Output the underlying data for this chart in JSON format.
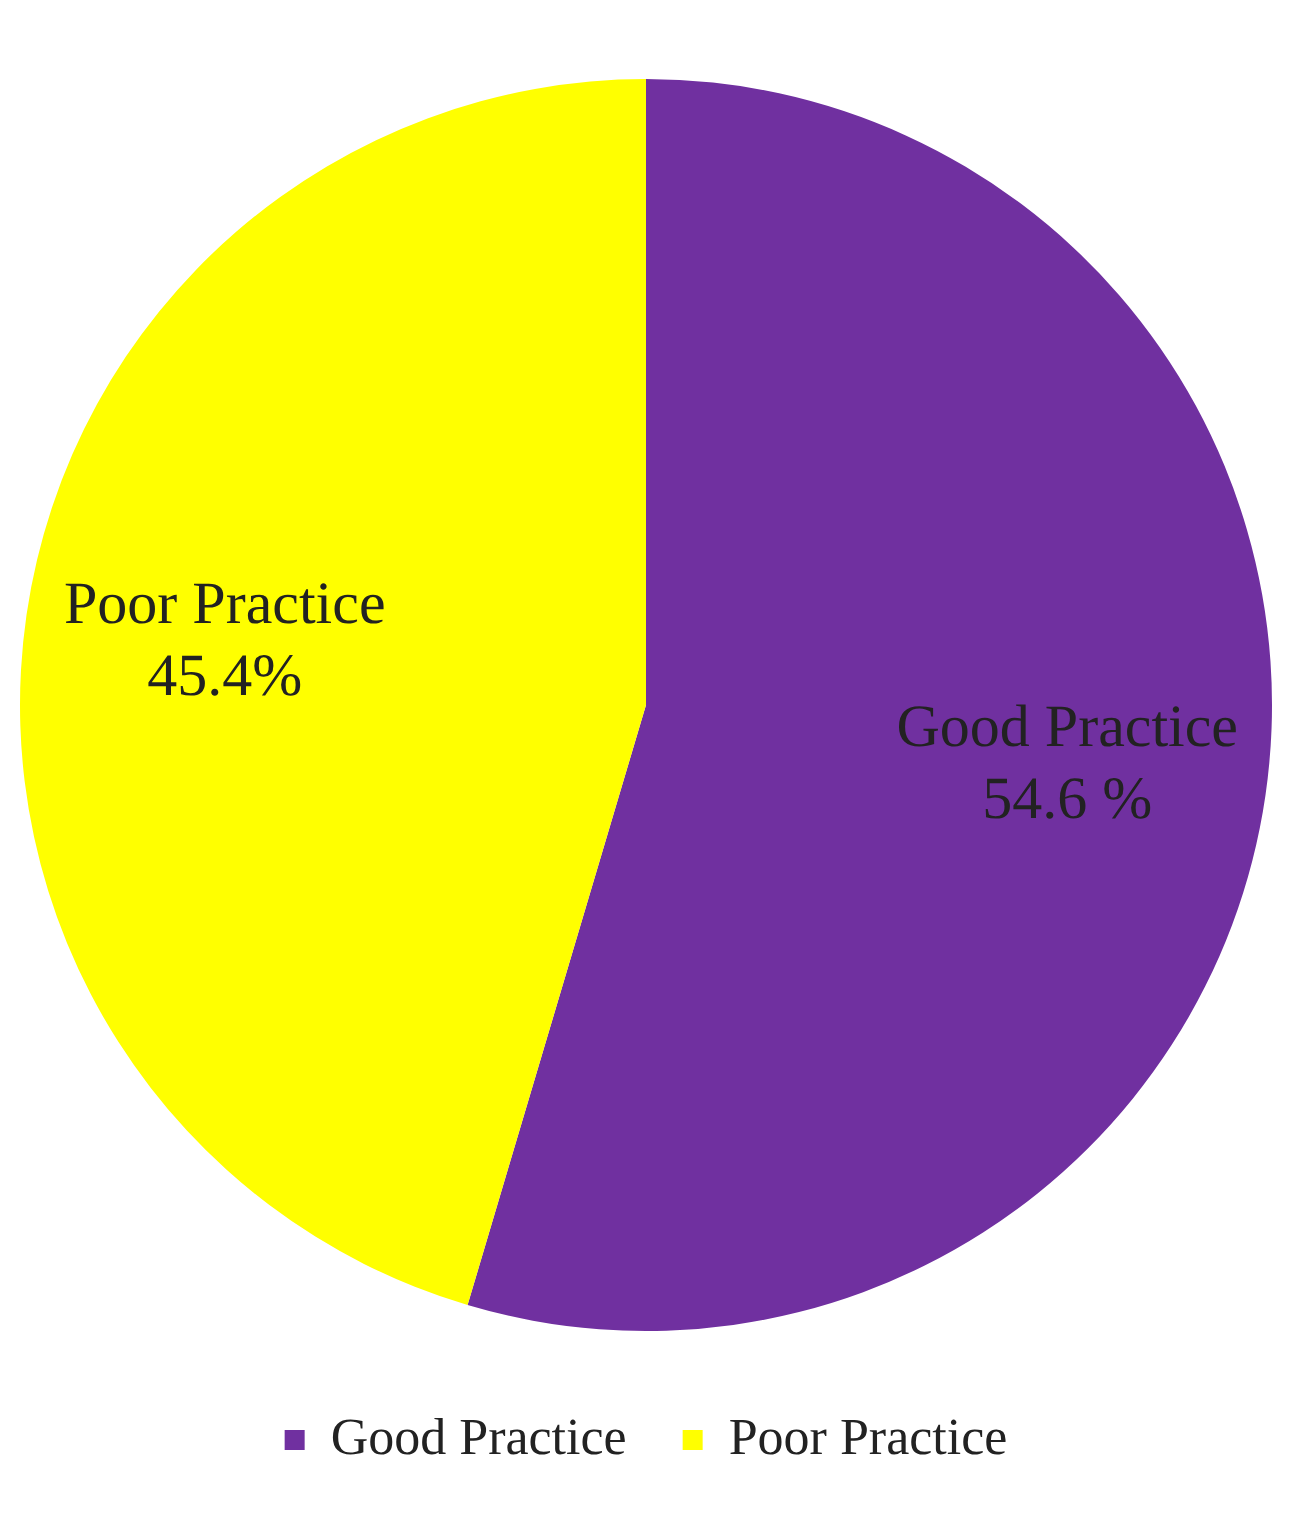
{
  "chart_data": {
    "type": "pie",
    "categories": [
      "Good Practice",
      "Poor Practice"
    ],
    "values": [
      54.6,
      45.4
    ],
    "colors": [
      "#7030a0",
      "#ffff00"
    ],
    "value_labels": [
      "54.6 %",
      "45.4%"
    ],
    "legend": "bottom"
  }
}
